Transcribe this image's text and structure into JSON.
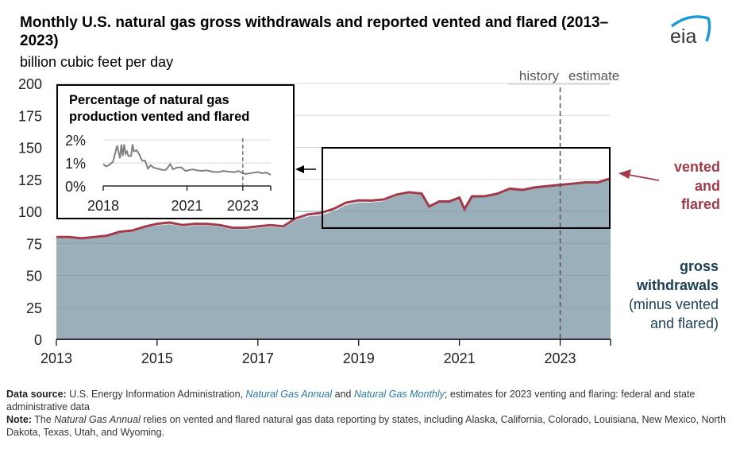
{
  "header": {
    "title": "Monthly U.S. natural gas gross withdrawals and reported vented and flared (2013–2023)",
    "units": "billion cubic feet per day",
    "logo_text": "eia"
  },
  "annotations": {
    "history": "history",
    "estimate": "estimate",
    "vented_label": [
      "vented",
      "and",
      "flared"
    ],
    "gross_label": [
      "gross",
      "withdrawals"
    ],
    "gross_sub": [
      "(minus vented",
      "and flared)"
    ]
  },
  "colors": {
    "area": "#9aafba",
    "vented": "#a23a4a",
    "gross_text": "#1b3f52",
    "inset_line": "#808080",
    "grid": "#d9d9d9",
    "logo_arc": "#1f9bd7",
    "logo_text": "#333333"
  },
  "footer": {
    "source_label": "Data source:",
    "source_text_1": " U.S. Energy Information Administration, ",
    "source_link_1": "Natural Gas Annual",
    "source_text_2": " and ",
    "source_link_2": "Natural Gas Monthly",
    "source_text_3": "; estimates for 2023 venting and flaring: federal and state administrative data",
    "note_label": "Note:",
    "note_text_1": " The ",
    "note_italic": "Natural Gas Annual",
    "note_text_2": " relies on vented and flared natural gas data reporting by states, including Alaska, California, Colorado, Louisiana, New Mexico, North Dakota, Texas, Utah, and Wyoming."
  },
  "chart_data": [
    {
      "type": "area",
      "title": "Monthly U.S. natural gas gross withdrawals and reported vented and flared (2013–2023)",
      "ylabel": "billion cubic feet per day",
      "xlabel": "",
      "xlim": [
        2013.0,
        2024.0
      ],
      "ylim": [
        0,
        200
      ],
      "yticks": [
        0,
        25,
        50,
        75,
        100,
        125,
        150,
        175,
        200
      ],
      "xticks": [
        "2013",
        "2015",
        "2017",
        "2019",
        "2021",
        "2023"
      ],
      "grid": true,
      "history_estimate_divider": 2023.0,
      "x": [
        2013.0,
        2013.25,
        2013.5,
        2013.75,
        2014.0,
        2014.25,
        2014.5,
        2014.75,
        2015.0,
        2015.25,
        2015.5,
        2015.75,
        2016.0,
        2016.25,
        2016.5,
        2016.75,
        2017.0,
        2017.25,
        2017.5,
        2017.75,
        2018.0,
        2018.25,
        2018.5,
        2018.75,
        2019.0,
        2019.25,
        2019.5,
        2019.75,
        2020.0,
        2020.25,
        2020.4,
        2020.6,
        2020.8,
        2021.0,
        2021.1,
        2021.25,
        2021.5,
        2021.75,
        2022.0,
        2022.25,
        2022.5,
        2022.75,
        2023.0,
        2023.25,
        2023.5,
        2023.75,
        2024.0
      ],
      "series": [
        {
          "name": "gross withdrawals (minus vented and flared)",
          "values": [
            79,
            79,
            78,
            79,
            80,
            83,
            84,
            87,
            89,
            90,
            88,
            89,
            89,
            88,
            86,
            86,
            87,
            88,
            87,
            93,
            96,
            97,
            100,
            105,
            107,
            107,
            108,
            112,
            114,
            113,
            103,
            107,
            107,
            110,
            101,
            111,
            111,
            113,
            117,
            116,
            118,
            119,
            120,
            121,
            122,
            122,
            125
          ]
        },
        {
          "name": "vented and flared",
          "values": [
            1.0,
            1.0,
            1.0,
            1.0,
            1.0,
            1.0,
            1.0,
            1.0,
            1.3,
            1.3,
            1.3,
            1.3,
            1.2,
            1.2,
            1.2,
            1.2,
            1.3,
            1.3,
            1.3,
            1.5,
            1.7,
            1.8,
            1.9,
            1.8,
            1.6,
            1.5,
            1.3,
            1.1,
            1.0,
            0.9,
            0.8,
            0.8,
            0.8,
            0.8,
            0.8,
            0.8,
            0.8,
            0.8,
            0.8,
            0.8,
            0.8,
            0.8,
            0.7,
            0.7,
            0.7,
            0.7,
            0.8
          ]
        }
      ]
    },
    {
      "type": "line",
      "title": "Percentage of natural gas production vented and flared",
      "xlim": [
        2018.0,
        2024.0
      ],
      "ylim": [
        0,
        2
      ],
      "yticks": [
        "0%",
        "1%",
        "2%"
      ],
      "xticks": [
        "2018",
        "2021",
        "2023"
      ],
      "grid": true,
      "divider": 2023.0,
      "x": [
        2018.0,
        2018.1,
        2018.2,
        2018.35,
        2018.5,
        2018.6,
        2018.65,
        2018.7,
        2018.75,
        2018.8,
        2018.85,
        2018.9,
        2019.0,
        2019.05,
        2019.1,
        2019.2,
        2019.3,
        2019.35,
        2019.4,
        2019.5,
        2019.6,
        2019.7,
        2019.8,
        2019.95,
        2020.1,
        2020.25,
        2020.4,
        2020.5,
        2020.65,
        2020.8,
        2020.95,
        2021.05,
        2021.1,
        2021.2,
        2021.35,
        2021.55,
        2021.7,
        2021.9,
        2022.1,
        2022.3,
        2022.5,
        2022.7,
        2022.85,
        2023.0,
        2023.1,
        2023.25,
        2023.4,
        2023.55,
        2023.7,
        2023.8,
        2023.9,
        2024.0
      ],
      "values": [
        0.95,
        0.85,
        0.9,
        1.05,
        1.75,
        1.2,
        1.8,
        1.3,
        1.8,
        1.4,
        1.5,
        1.3,
        1.3,
        1.8,
        1.5,
        1.55,
        1.35,
        1.2,
        1.1,
        1.1,
        0.75,
        0.9,
        0.8,
        0.75,
        0.7,
        0.7,
        0.95,
        0.72,
        0.8,
        0.8,
        0.65,
        0.68,
        0.7,
        0.72,
        0.68,
        0.65,
        0.68,
        0.62,
        0.6,
        0.65,
        0.62,
        0.6,
        0.65,
        0.55,
        0.52,
        0.55,
        0.58,
        0.6,
        0.55,
        0.58,
        0.55,
        0.48
      ]
    }
  ]
}
